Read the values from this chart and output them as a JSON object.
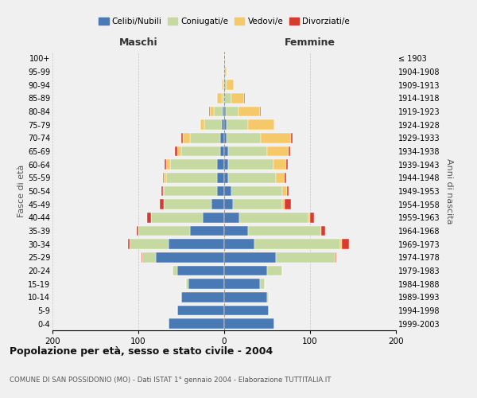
{
  "age_groups": [
    "0-4",
    "5-9",
    "10-14",
    "15-19",
    "20-24",
    "25-29",
    "30-34",
    "35-39",
    "40-44",
    "45-49",
    "50-54",
    "55-59",
    "60-64",
    "65-69",
    "70-74",
    "75-79",
    "80-84",
    "85-89",
    "90-94",
    "95-99",
    "100+"
  ],
  "birth_years": [
    "1999-2003",
    "1994-1998",
    "1989-1993",
    "1984-1988",
    "1979-1983",
    "1974-1978",
    "1969-1973",
    "1964-1968",
    "1959-1963",
    "1954-1958",
    "1949-1953",
    "1944-1948",
    "1939-1943",
    "1934-1938",
    "1929-1933",
    "1924-1928",
    "1919-1923",
    "1914-1918",
    "1909-1913",
    "1904-1908",
    "≤ 1903"
  ],
  "colors": {
    "celibi": "#4a7ab5",
    "coniugati": "#c5d9a0",
    "vedovi": "#f5c96a",
    "divorziati": "#d73b2f"
  },
  "males": {
    "celibi": [
      65,
      55,
      50,
      42,
      55,
      80,
      65,
      40,
      25,
      15,
      8,
      8,
      8,
      5,
      5,
      3,
      2,
      0,
      0,
      0,
      0
    ],
    "coniugati": [
      0,
      0,
      0,
      2,
      5,
      15,
      45,
      60,
      60,
      55,
      62,
      60,
      55,
      45,
      35,
      20,
      10,
      3,
      1,
      0,
      0
    ],
    "vedovi": [
      0,
      0,
      0,
      0,
      0,
      0,
      0,
      0,
      0,
      0,
      1,
      2,
      5,
      5,
      8,
      5,
      5,
      5,
      2,
      1,
      0
    ],
    "divorziati": [
      0,
      0,
      0,
      0,
      0,
      1,
      2,
      2,
      5,
      5,
      2,
      1,
      1,
      2,
      2,
      0,
      1,
      0,
      0,
      0,
      0
    ]
  },
  "females": {
    "nubili": [
      58,
      52,
      50,
      42,
      50,
      60,
      35,
      28,
      18,
      10,
      8,
      5,
      5,
      5,
      3,
      3,
      2,
      0,
      0,
      0,
      0
    ],
    "coniugati": [
      0,
      0,
      2,
      5,
      18,
      70,
      100,
      85,
      80,
      58,
      60,
      55,
      52,
      45,
      40,
      25,
      15,
      8,
      3,
      1,
      0
    ],
    "vedovi": [
      0,
      0,
      0,
      0,
      0,
      0,
      2,
      0,
      2,
      2,
      5,
      10,
      15,
      25,
      35,
      30,
      25,
      15,
      8,
      2,
      1
    ],
    "divorziati": [
      0,
      0,
      0,
      0,
      0,
      1,
      8,
      5,
      5,
      8,
      2,
      2,
      2,
      2,
      2,
      0,
      1,
      1,
      0,
      0,
      0
    ]
  },
  "title": "Popolazione per età, sesso e stato civile - 2004",
  "subtitle": "COMUNE DI SAN POSSIDONIO (MO) - Dati ISTAT 1° gennaio 2004 - Elaborazione TUTTITALIA.IT",
  "xlabel_left": "Maschi",
  "xlabel_right": "Femmine",
  "ylabel_left": "Fasce di età",
  "ylabel_right": "Anni di nascita",
  "xlim": 200,
  "legend_labels": [
    "Celibi/Nubili",
    "Coniugati/e",
    "Vedovi/e",
    "Divorziati/e"
  ],
  "background_color": "#f0f0f0"
}
